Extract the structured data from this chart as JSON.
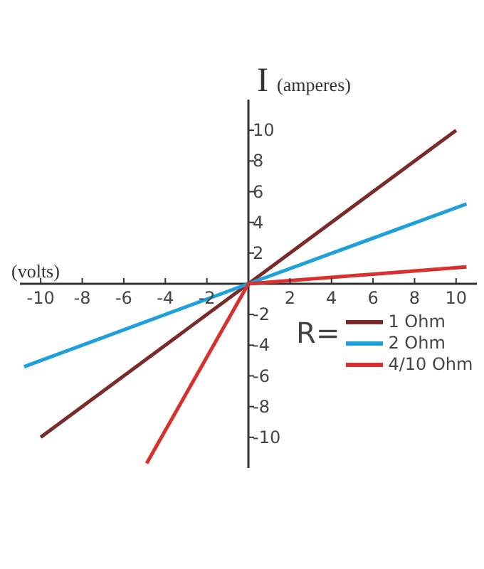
{
  "chart_data": {
    "type": "line",
    "xlabel": "(volts)",
    "ylabel": "I (amperes)",
    "legend_title": "R=",
    "legend": "bottom right",
    "grid": false,
    "marker": "none",
    "line_style": "solid",
    "xlim": [
      -11,
      11
    ],
    "xticks": [
      -10,
      -8,
      -6,
      -4,
      -2,
      2,
      4,
      6,
      8,
      10
    ],
    "ylim": [
      -12,
      12
    ],
    "yticks": [
      -10,
      -8,
      -6,
      -4,
      -2,
      2,
      4,
      6,
      8,
      10
    ],
    "series": [
      {
        "name": "1 Ohm",
        "color": "#7b2a2a",
        "x": [
          -10,
          0,
          10
        ],
        "values": [
          -10,
          0,
          10
        ]
      },
      {
        "name": "2 Ohm",
        "color": "#1ea0dc",
        "x": [
          -10.8,
          0,
          10.5
        ],
        "values": [
          -5.4,
          0,
          5.2
        ]
      },
      {
        "name": "4/10 Ohm",
        "color": "#d8302e",
        "x": [
          -4.9,
          0,
          10.5
        ],
        "values": [
          -11.7,
          0,
          1.1
        ]
      }
    ]
  }
}
